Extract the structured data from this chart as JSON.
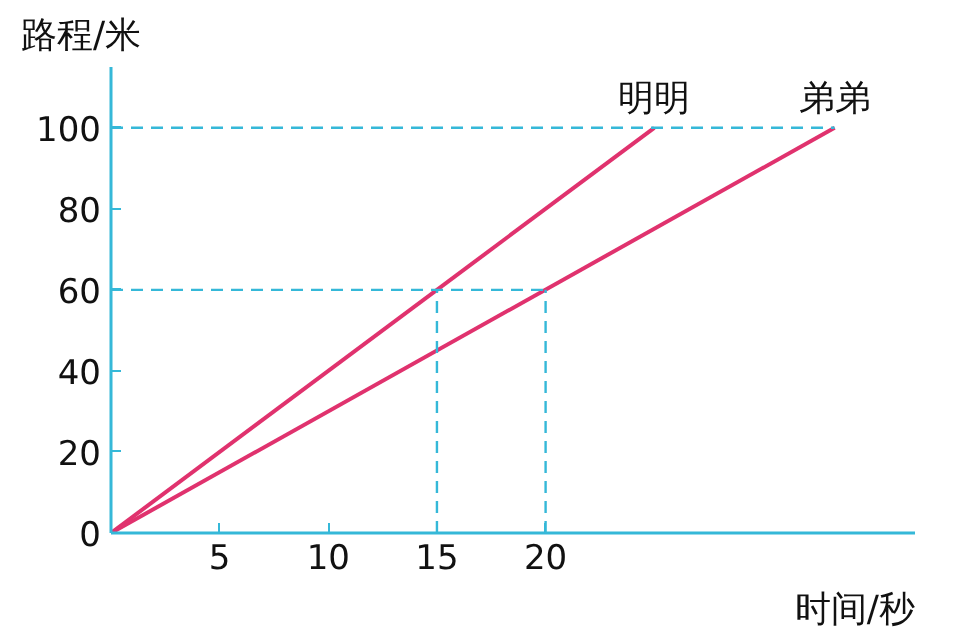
{
  "chart_data": {
    "type": "line",
    "xlabel": "时间/秒",
    "ylabel": "路程/米",
    "xlim": [
      0,
      37
    ],
    "ylim": [
      0,
      115
    ],
    "xticks": [
      5,
      10,
      15,
      20
    ],
    "yticks": [
      0,
      20,
      40,
      60,
      80,
      100
    ],
    "grid": false,
    "marker": "none",
    "series": [
      {
        "name": "明明",
        "color": "#e0326e",
        "x": [
          0,
          25
        ],
        "values": [
          0,
          100
        ],
        "line_style": "solid"
      },
      {
        "name": "弟弟",
        "color": "#e0326e",
        "x": [
          0,
          33.3
        ],
        "values": [
          0,
          100
        ],
        "line_style": "solid"
      },
      {
        "color": "#35b8d8",
        "x": [
          0,
          33.3
        ],
        "values": [
          100,
          100
        ],
        "line_style": "dashed"
      },
      {
        "color": "#35b8d8",
        "x": [
          0,
          20
        ],
        "values": [
          60,
          60
        ],
        "line_style": "dashed"
      },
      {
        "color": "#35b8d8",
        "x": [
          15,
          15
        ],
        "values": [
          0,
          60
        ],
        "line_style": "dashed"
      },
      {
        "color": "#35b8d8",
        "x": [
          20,
          20
        ],
        "values": [
          0,
          60
        ],
        "line_style": "dashed"
      }
    ]
  }
}
